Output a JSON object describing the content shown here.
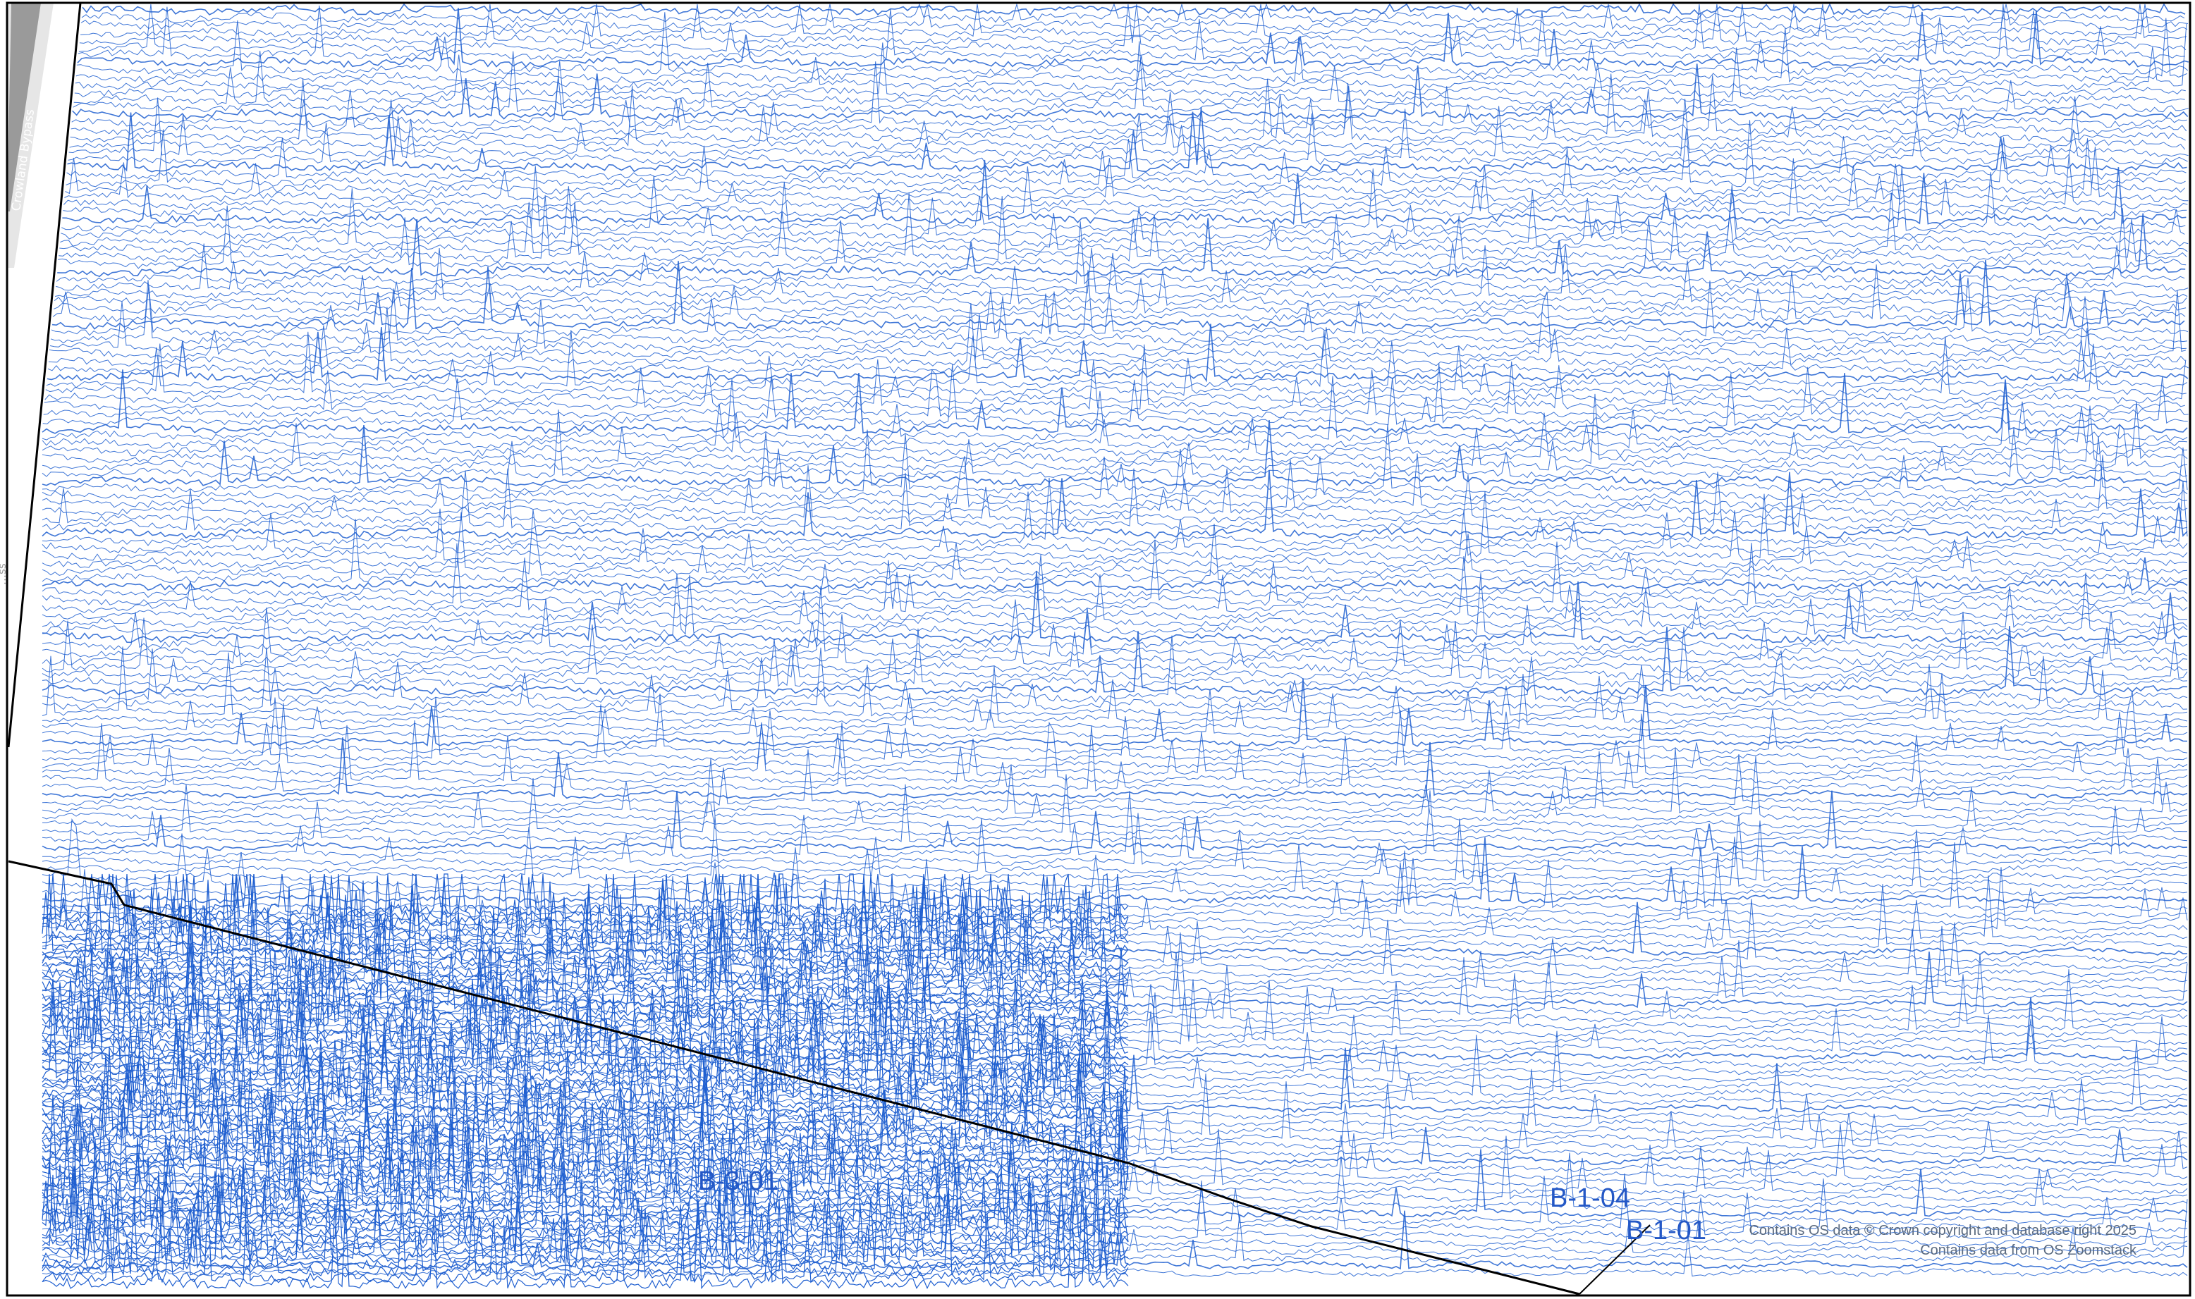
{
  "map": {
    "road_label": "Crowland Bypass",
    "road_label_partial": "…ss",
    "survey_labels": [
      "B-3-01",
      "B-1-04",
      "B-1-01"
    ],
    "attribution_line_1": "Contains OS data © Crown copyright and database right 2025",
    "attribution_line_2": "Contains data from OS Zoomstack"
  },
  "colors": {
    "trace_line": "#1f5fd0",
    "boundary_line": "#000000",
    "road_fill": "#9a9a9a",
    "road_edge": "#e6e6e6",
    "background": "#ffffff"
  }
}
